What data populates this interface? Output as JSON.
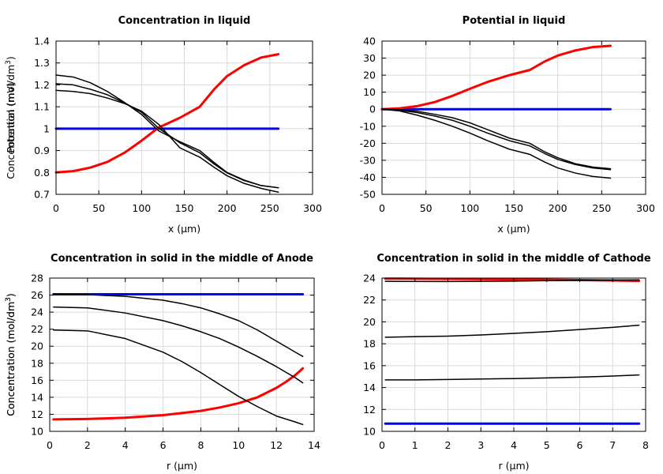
{
  "chart_data": [
    {
      "type": "line",
      "title": "Concentration in liquid",
      "xlabel": "x (µm)",
      "ylabel": "Concentration (mol/dm",
      "ylabel_sup": "3",
      "ylabel_end": ")",
      "xlim": [
        0,
        300
      ],
      "ylim": [
        0.7,
        1.4
      ],
      "xticks": [
        0,
        50,
        100,
        150,
        200,
        250,
        300
      ],
      "yticks": [
        0.7,
        0.8,
        0.9,
        1,
        1.1,
        1.2,
        1.3,
        1.4
      ],
      "xtick_labels": [
        "0",
        "50",
        "100",
        "150",
        "200",
        "250",
        "300"
      ],
      "ytick_labels": [
        "0.7",
        "0.8",
        "0.9",
        "1",
        "1.1",
        "1.2",
        "1.3",
        "1.4"
      ],
      "grid": true,
      "series": [
        {
          "color": "#0000ff",
          "width": 3,
          "x": [
            0,
            260
          ],
          "y": [
            1.0,
            1.0
          ]
        },
        {
          "color": "#ff0000",
          "width": 3,
          "x": [
            0,
            20,
            40,
            60,
            80,
            100,
            120,
            145,
            168,
            185,
            200,
            220,
            240,
            260
          ],
          "y": [
            0.8,
            0.806,
            0.822,
            0.848,
            0.89,
            0.945,
            1.005,
            1.05,
            1.1,
            1.18,
            1.24,
            1.29,
            1.325,
            1.34
          ]
        },
        {
          "color": "#000000",
          "width": 1.5,
          "x": [
            0,
            20,
            40,
            60,
            80,
            100,
            120,
            145,
            168,
            185,
            200,
            220,
            240,
            260
          ],
          "y": [
            1.245,
            1.236,
            1.21,
            1.17,
            1.12,
            1.065,
            0.99,
            0.94,
            0.9,
            0.845,
            0.8,
            0.765,
            0.74,
            0.73
          ]
        },
        {
          "color": "#000000",
          "width": 1.5,
          "x": [
            0,
            20,
            40,
            60,
            80,
            100,
            120,
            145,
            168,
            185,
            200,
            220,
            240,
            260
          ],
          "y": [
            1.205,
            1.2,
            1.18,
            1.155,
            1.118,
            1.075,
            1.002,
            0.935,
            0.89,
            0.838,
            0.798,
            0.763,
            0.74,
            0.73
          ]
        },
        {
          "color": "#000000",
          "width": 1.5,
          "x": [
            0,
            20,
            40,
            60,
            80,
            100,
            120,
            145,
            168,
            185,
            200,
            220,
            240,
            260
          ],
          "y": [
            1.175,
            1.17,
            1.16,
            1.14,
            1.115,
            1.08,
            1.02,
            0.912,
            0.87,
            0.823,
            0.785,
            0.75,
            0.727,
            0.71
          ]
        }
      ]
    },
    {
      "type": "line",
      "title": "Potential in liquid",
      "xlabel": "x (µm)",
      "ylabel": "Potential (mV)",
      "ylabel_sup": "",
      "ylabel_end": "",
      "xlim": [
        0,
        300
      ],
      "ylim": [
        -50,
        40
      ],
      "xticks": [
        0,
        50,
        100,
        150,
        200,
        250,
        300
      ],
      "yticks": [
        -50,
        -40,
        -30,
        -20,
        -10,
        0,
        10,
        20,
        30,
        40
      ],
      "xtick_labels": [
        "0",
        "50",
        "100",
        "150",
        "200",
        "250",
        "300"
      ],
      "ytick_labels": [
        "-50",
        "-40",
        "-30",
        "-20",
        "-10",
        "0",
        "10",
        "20",
        "30",
        "40"
      ],
      "grid": true,
      "series": [
        {
          "color": "#0000ff",
          "width": 3,
          "x": [
            0,
            260
          ],
          "y": [
            0,
            0
          ]
        },
        {
          "color": "#ff0000",
          "width": 3,
          "x": [
            0,
            20,
            40,
            60,
            80,
            100,
            120,
            145,
            168,
            185,
            200,
            220,
            240,
            260
          ],
          "y": [
            0,
            0.5,
            1.8,
            4.2,
            7.8,
            12,
            16,
            20,
            23,
            28,
            31.5,
            34.5,
            36.5,
            37.2
          ]
        },
        {
          "color": "#000000",
          "width": 1.5,
          "x": [
            0,
            20,
            40,
            60,
            80,
            100,
            120,
            145,
            168,
            185,
            200,
            220,
            240,
            260
          ],
          "y": [
            0,
            -0.3,
            -1.2,
            -3,
            -5,
            -8,
            -12,
            -17,
            -20,
            -25,
            -28.5,
            -32,
            -34,
            -35
          ]
        },
        {
          "color": "#000000",
          "width": 1.5,
          "x": [
            0,
            20,
            40,
            60,
            80,
            100,
            120,
            145,
            168,
            185,
            200,
            220,
            240,
            260
          ],
          "y": [
            0,
            -0.6,
            -2,
            -4,
            -6.5,
            -10,
            -14,
            -18.5,
            -21.5,
            -26,
            -29.5,
            -32.5,
            -34.5,
            -35.5
          ]
        },
        {
          "color": "#000000",
          "width": 1.5,
          "x": [
            0,
            20,
            40,
            60,
            80,
            100,
            120,
            145,
            168,
            185,
            200,
            220,
            240,
            260
          ],
          "y": [
            0,
            -1,
            -3.5,
            -6.5,
            -10,
            -14,
            -18.5,
            -23.5,
            -26.5,
            -31,
            -34.5,
            -37.5,
            -39.5,
            -40.5
          ]
        }
      ]
    },
    {
      "type": "line",
      "title": "Concentration in solid in the middle of Anode",
      "xlabel": "r (µm)",
      "ylabel": "Concentration (mol/dm",
      "ylabel_sup": "3",
      "ylabel_end": ")",
      "xlim": [
        0,
        14
      ],
      "ylim": [
        10,
        28
      ],
      "xticks": [
        0,
        2,
        4,
        6,
        8,
        10,
        12,
        14
      ],
      "yticks": [
        10,
        12,
        14,
        16,
        18,
        20,
        22,
        24,
        26,
        28
      ],
      "xtick_labels": [
        "0",
        "2",
        "4",
        "6",
        "8",
        "10",
        "12",
        "14"
      ],
      "ytick_labels": [
        "10",
        "12",
        "14",
        "16",
        "18",
        "20",
        "22",
        "24",
        "26",
        "28"
      ],
      "grid": true,
      "series": [
        {
          "color": "#0000ff",
          "width": 3,
          "x": [
            0.2,
            13.4
          ],
          "y": [
            26.1,
            26.1
          ]
        },
        {
          "color": "#ff0000",
          "width": 3,
          "x": [
            0.2,
            2,
            4,
            6,
            8,
            9,
            10,
            11,
            12,
            12.5,
            13,
            13.4
          ],
          "y": [
            11.4,
            11.45,
            11.6,
            11.9,
            12.4,
            12.8,
            13.3,
            14.0,
            15.1,
            15.8,
            16.6,
            17.4
          ]
        },
        {
          "color": "#000000",
          "width": 1.5,
          "x": [
            0.2,
            2,
            4,
            6,
            7,
            8,
            9,
            10,
            11,
            12,
            13,
            13.4
          ],
          "y": [
            26.1,
            26.05,
            25.85,
            25.4,
            25.0,
            24.5,
            23.8,
            23.0,
            21.9,
            20.6,
            19.3,
            18.8
          ]
        },
        {
          "color": "#000000",
          "width": 1.5,
          "x": [
            0.2,
            2,
            4,
            6,
            7,
            8,
            9,
            10,
            11,
            12,
            13,
            13.4
          ],
          "y": [
            24.6,
            24.5,
            23.9,
            23.0,
            22.4,
            21.7,
            20.9,
            19.9,
            18.8,
            17.6,
            16.3,
            15.7
          ]
        },
        {
          "color": "#000000",
          "width": 1.5,
          "x": [
            0.2,
            2,
            4,
            6,
            7,
            8,
            9,
            10,
            11,
            12,
            13,
            13.4
          ],
          "y": [
            21.9,
            21.8,
            20.9,
            19.3,
            18.2,
            16.9,
            15.5,
            14.1,
            12.9,
            11.8,
            11.1,
            10.8
          ]
        }
      ]
    },
    {
      "type": "line",
      "title": "Concentration in solid in the middle of Cathode",
      "xlabel": "r (µm)",
      "ylabel": "Concentration (mol/dm",
      "ylabel_sup": "3",
      "ylabel_end": ")",
      "xlim": [
        0,
        8
      ],
      "ylim": [
        10,
        24
      ],
      "xticks": [
        0,
        1,
        2,
        3,
        4,
        5,
        6,
        7,
        8
      ],
      "yticks": [
        10,
        12,
        14,
        16,
        18,
        20,
        22,
        24
      ],
      "xtick_labels": [
        "0",
        "1",
        "2",
        "3",
        "4",
        "5",
        "6",
        "7",
        "8"
      ],
      "ytick_labels": [
        "10",
        "12",
        "14",
        "16",
        "18",
        "20",
        "22",
        "24"
      ],
      "grid": true,
      "series": [
        {
          "color": "#0000ff",
          "width": 3,
          "x": [
            0.1,
            7.8
          ],
          "y": [
            10.7,
            10.7
          ]
        },
        {
          "color": "#ff0000",
          "width": 3,
          "x": [
            0.1,
            2,
            4,
            6,
            7,
            7.8
          ],
          "y": [
            23.95,
            23.92,
            23.88,
            23.82,
            23.78,
            23.74
          ]
        },
        {
          "color": "#000000",
          "width": 1.5,
          "x": [
            0.1,
            2,
            4,
            6,
            7,
            7.8
          ],
          "y": [
            23.7,
            23.68,
            23.72,
            23.8,
            23.82,
            23.84
          ]
        },
        {
          "color": "#000000",
          "width": 1.5,
          "x": [
            0.1,
            1,
            2,
            3,
            4,
            5,
            6,
            7,
            7.8
          ],
          "y": [
            18.6,
            18.65,
            18.7,
            18.8,
            18.95,
            19.1,
            19.3,
            19.5,
            19.7
          ]
        },
        {
          "color": "#000000",
          "width": 1.5,
          "x": [
            0.1,
            1,
            2,
            3,
            4,
            5,
            6,
            7,
            7.8
          ],
          "y": [
            14.7,
            14.7,
            14.74,
            14.78,
            14.82,
            14.88,
            14.95,
            15.05,
            15.15
          ]
        }
      ]
    }
  ]
}
